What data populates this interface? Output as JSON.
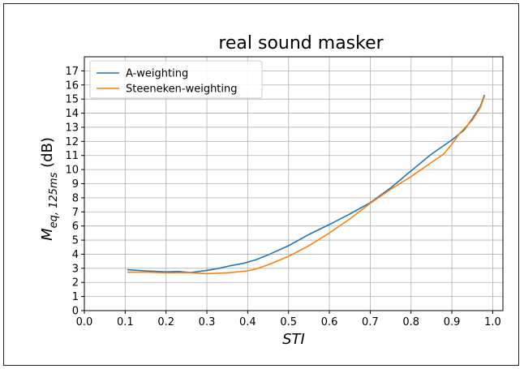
{
  "chart_data": {
    "type": "line",
    "title": "real sound masker",
    "xlabel": "STI",
    "ylabel_main": "M",
    "ylabel_sub": "eq, 125ms",
    "ylabel_unit": " (dB)",
    "xlim": [
      0.0,
      1.025
    ],
    "ylim": [
      0,
      18
    ],
    "x_ticks": [
      0.0,
      0.1,
      0.2,
      0.3,
      0.4,
      0.5,
      0.6,
      0.7,
      0.8,
      0.9,
      1.0
    ],
    "y_ticks": [
      0,
      1,
      2,
      3,
      4,
      5,
      6,
      7,
      8,
      9,
      10,
      11,
      12,
      13,
      14,
      15,
      16,
      17
    ],
    "grid": true,
    "legend_position": "top-left",
    "series": [
      {
        "name": "A-weighting",
        "color": "#1f77b4",
        "x": [
          0.105,
          0.15,
          0.2,
          0.23,
          0.26,
          0.3,
          0.33,
          0.36,
          0.39,
          0.42,
          0.45,
          0.5,
          0.55,
          0.6,
          0.65,
          0.7,
          0.75,
          0.8,
          0.85,
          0.9,
          0.93,
          0.95,
          0.97,
          0.98
        ],
        "values": [
          2.9,
          2.82,
          2.75,
          2.78,
          2.7,
          2.85,
          3.0,
          3.2,
          3.35,
          3.6,
          3.95,
          4.6,
          5.4,
          6.1,
          6.85,
          7.65,
          8.7,
          9.9,
          11.1,
          12.1,
          12.8,
          13.6,
          14.5,
          15.3
        ]
      },
      {
        "name": "Steeneken-weighting",
        "color": "#ff7f0e",
        "x": [
          0.105,
          0.15,
          0.2,
          0.25,
          0.3,
          0.35,
          0.4,
          0.42,
          0.45,
          0.5,
          0.55,
          0.6,
          0.65,
          0.7,
          0.75,
          0.8,
          0.85,
          0.88,
          0.9,
          0.92,
          0.95,
          0.97,
          0.98
        ],
        "values": [
          2.72,
          2.73,
          2.68,
          2.7,
          2.62,
          2.68,
          2.82,
          2.95,
          3.25,
          3.85,
          4.6,
          5.5,
          6.5,
          7.6,
          8.6,
          9.5,
          10.5,
          11.1,
          11.8,
          12.6,
          13.5,
          14.4,
          15.2
        ]
      }
    ]
  }
}
